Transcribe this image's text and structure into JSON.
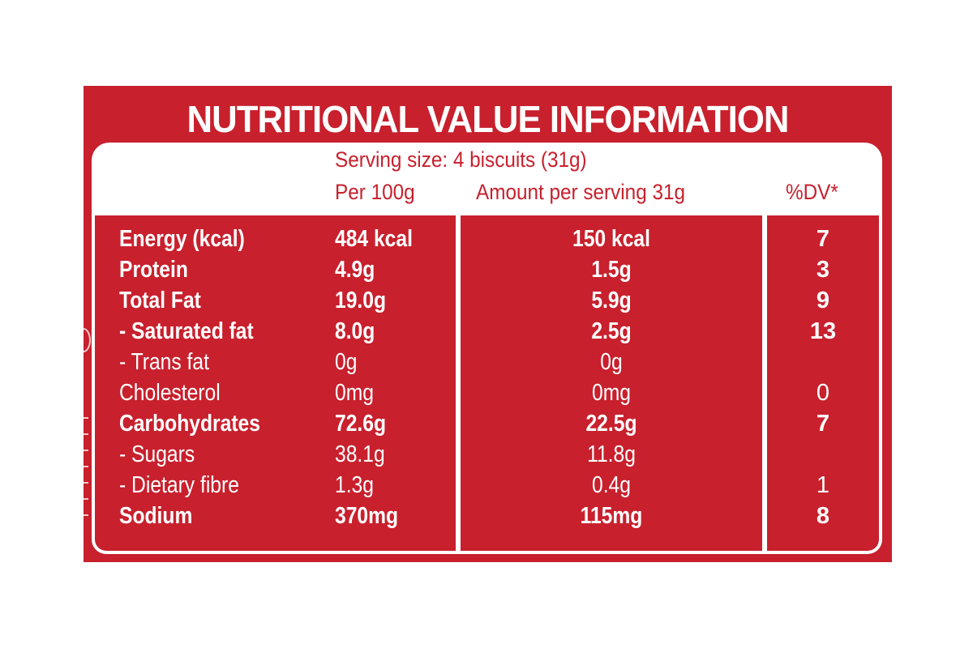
{
  "title": "NUTRITIONAL VALUE INFORMATION",
  "serving_size": "Serving size: 4 biscuits (31g)",
  "columns": {
    "per100": "Per 100g",
    "per_serving": "Amount per serving 31g",
    "dv": "%DV*"
  },
  "rows": [
    {
      "nutrient": "Energy (kcal)",
      "per100": "484 kcal",
      "per_serving": "150 kcal",
      "dv": "7",
      "bold": true
    },
    {
      "nutrient": "Protein",
      "per100": "4.9g",
      "per_serving": "1.5g",
      "dv": "3",
      "bold": true
    },
    {
      "nutrient": "Total Fat",
      "per100": "19.0g",
      "per_serving": "5.9g",
      "dv": "9",
      "bold": true
    },
    {
      "nutrient": "- Saturated fat",
      "per100": "8.0g",
      "per_serving": "2.5g",
      "dv": "13",
      "bold": true
    },
    {
      "nutrient": "- Trans fat",
      "per100": "0g",
      "per_serving": "0g",
      "dv": "",
      "bold": false
    },
    {
      "nutrient": "Cholesterol",
      "per100": "0mg",
      "per_serving": "0mg",
      "dv": "0",
      "bold": false
    },
    {
      "nutrient": "Carbohydrates",
      "per100": "72.6g",
      "per_serving": "22.5g",
      "dv": "7",
      "bold": true
    },
    {
      "nutrient": "- Sugars",
      "per100": "38.1g",
      "per_serving": "11.8g",
      "dv": "",
      "bold": false
    },
    {
      "nutrient": "- Dietary fibre",
      "per100": "1.3g",
      "per_serving": "0.4g",
      "dv": "1",
      "bold": false
    },
    {
      "nutrient": "Sodium",
      "per100": "370mg",
      "per_serving": "115mg",
      "dv": "8",
      "bold": true
    }
  ],
  "colors": {
    "label_red": "#c8202d",
    "text_white": "#ffffff"
  }
}
